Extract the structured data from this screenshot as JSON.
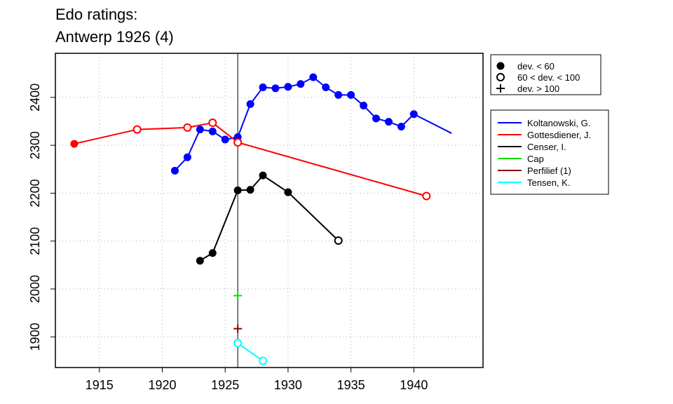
{
  "chart_data": {
    "type": "line",
    "title": [
      "Edo ratings:",
      "Antwerp 1926 (4)"
    ],
    "xlabel": "",
    "ylabel": "",
    "xlim": [
      1911.5,
      1945.5
    ],
    "ylim": [
      1836,
      2492
    ],
    "x_ticks": [
      1915,
      1920,
      1925,
      1930,
      1935,
      1940
    ],
    "y_ticks": [
      1900,
      2000,
      2100,
      2200,
      2300,
      2400
    ],
    "grid": true,
    "reference_x": 1926,
    "deviation_legend": {
      "placement": "top-right",
      "entries": [
        {
          "marker": "filled",
          "label": "dev. < 60"
        },
        {
          "marker": "open",
          "label": "60 < dev. < 100"
        },
        {
          "marker": "plus",
          "label": "dev. > 100"
        }
      ]
    },
    "player_legend_placement": "right",
    "series": [
      {
        "name": "Koltanowski, G.",
        "color": "#0000ff",
        "x": [
          1921,
          1922,
          1923,
          1924,
          1925,
          1926,
          1927,
          1928,
          1929,
          1930,
          1931,
          1932,
          1933,
          1934,
          1935,
          1936,
          1937,
          1938,
          1939,
          1940,
          1943
        ],
        "y": [
          2247,
          2275,
          2333,
          2329,
          2312,
          2317,
          2386,
          2421,
          2419,
          2422,
          2428,
          2442,
          2421,
          2405,
          2405,
          2383,
          2356,
          2349,
          2339,
          2365,
          2325
        ],
        "markers": [
          "filled",
          "filled",
          "filled",
          "filled",
          "filled",
          "filled",
          "filled",
          "filled",
          "filled",
          "filled",
          "filled",
          "filled",
          "filled",
          "filled",
          "filled",
          "filled",
          "filled",
          "filled",
          "filled",
          "filled",
          "none"
        ]
      },
      {
        "name": "Gottesdiener, J.",
        "color": "#ff0000",
        "x": [
          1913,
          1918,
          1922,
          1924,
          1926,
          1941
        ],
        "y": [
          2303,
          2333,
          2337,
          2347,
          2306,
          2194
        ],
        "markers": [
          "filled",
          "open",
          "open",
          "open",
          "open",
          "open"
        ]
      },
      {
        "name": "Censer, I.",
        "color": "#000000",
        "x": [
          1923,
          1924,
          1926,
          1927,
          1928,
          1930,
          1934
        ],
        "y": [
          2059,
          2075,
          2206,
          2207,
          2237,
          2202,
          2101
        ],
        "markers": [
          "filled",
          "filled",
          "filled",
          "filled",
          "filled",
          "filled",
          "open"
        ]
      },
      {
        "name": "Cap",
        "color": "#00dd00",
        "x": [
          1926
        ],
        "y": [
          1986
        ],
        "markers": [
          "plus"
        ]
      },
      {
        "name": "Perfilief (1)",
        "color": "#8b0000",
        "x": [
          1926
        ],
        "y": [
          1917
        ],
        "markers": [
          "plus"
        ]
      },
      {
        "name": "Tensen, K.",
        "color": "#00ffff",
        "x": [
          1926,
          1928
        ],
        "y": [
          1887,
          1850
        ],
        "markers": [
          "open",
          "open"
        ]
      }
    ]
  }
}
